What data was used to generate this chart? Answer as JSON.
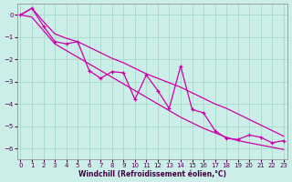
{
  "xlabel": "Windchill (Refroidissement éolien,°C)",
  "bg_color": "#cceee8",
  "grid_color": "#aaddcc",
  "line_color": "#cc00aa",
  "x_data": [
    0,
    1,
    2,
    3,
    4,
    5,
    6,
    7,
    8,
    9,
    10,
    11,
    12,
    13,
    14,
    15,
    16,
    17,
    18,
    19,
    20,
    21,
    22,
    23
  ],
  "y_main": [
    0.0,
    0.3,
    -0.5,
    -1.2,
    -1.3,
    -1.2,
    -2.5,
    -2.85,
    -2.55,
    -2.6,
    -3.8,
    -2.7,
    -3.4,
    -4.2,
    -2.3,
    -4.25,
    -4.4,
    -5.2,
    -5.55,
    -5.6,
    -5.4,
    -5.5,
    -5.75,
    -5.65
  ],
  "y_upper": [
    0.0,
    0.3,
    -0.3,
    -0.85,
    -1.05,
    -1.2,
    -1.45,
    -1.7,
    -1.95,
    -2.15,
    -2.4,
    -2.65,
    -2.85,
    -3.05,
    -3.25,
    -3.5,
    -3.75,
    -4.0,
    -4.2,
    -4.45,
    -4.7,
    -4.95,
    -5.2,
    -5.45
  ],
  "y_lower": [
    0.0,
    -0.1,
    -0.7,
    -1.3,
    -1.6,
    -1.9,
    -2.2,
    -2.5,
    -2.8,
    -3.1,
    -3.4,
    -3.7,
    -4.0,
    -4.3,
    -4.6,
    -4.85,
    -5.1,
    -5.3,
    -5.5,
    -5.65,
    -5.75,
    -5.85,
    -5.95,
    -6.05
  ],
  "ylim_top": 0.5,
  "ylim_bottom": -6.5,
  "xlim_left": -0.3,
  "xlim_right": 23.3,
  "yticks": [
    0,
    -1,
    -2,
    -3,
    -4,
    -5,
    -6
  ],
  "xticks": [
    0,
    1,
    2,
    3,
    4,
    5,
    6,
    7,
    8,
    9,
    10,
    11,
    12,
    13,
    14,
    15,
    16,
    17,
    18,
    19,
    20,
    21,
    22,
    23
  ],
  "xlabel_fontsize": 5.5,
  "tick_fontsize": 5.0
}
